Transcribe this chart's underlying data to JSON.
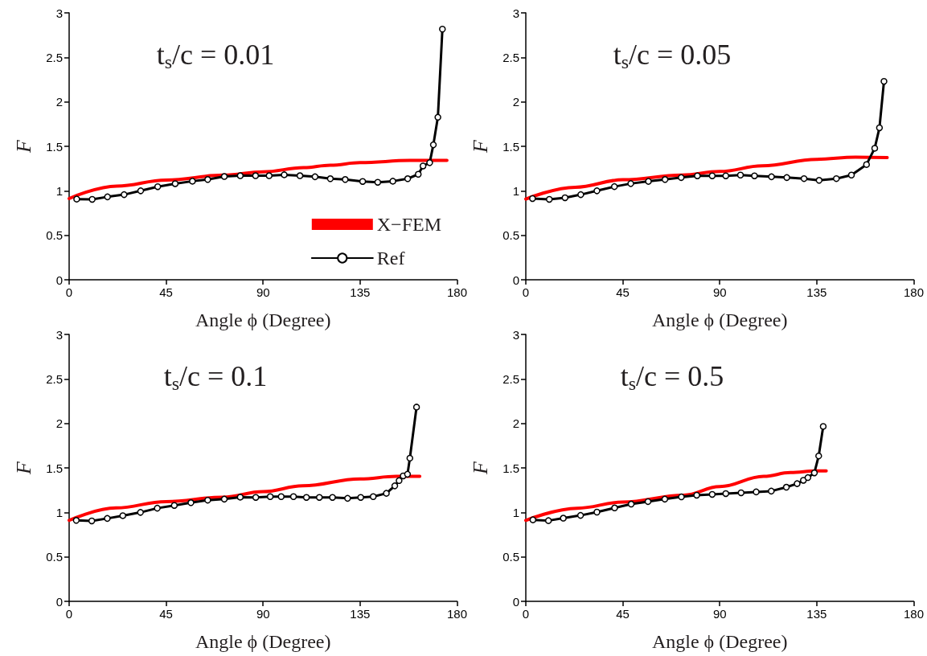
{
  "chart_data": [
    {
      "type": "line",
      "title": "t$_{s}$/c = 0.01",
      "xlabel": "Angle ϕ (Degree)",
      "ylabel": "F",
      "xlim": [
        0,
        180
      ],
      "ylim": [
        0,
        3
      ],
      "xticks": [
        0,
        45,
        90,
        135,
        180
      ],
      "yticks": [
        0,
        0.5,
        1,
        1.5,
        2,
        2.5,
        3
      ],
      "legend": "bottom right",
      "series": [
        {
          "name": "X−FEM",
          "color": "#ff0000",
          "marker": "none",
          "x": [
            0,
            22.1,
            45,
            71.6,
            90,
            108.8,
            121.2,
            135,
            158.4,
            175.3
          ],
          "values": [
            0.913,
            1.053,
            1.121,
            1.176,
            1.214,
            1.26,
            1.288,
            1.316,
            1.341,
            1.341
          ]
        },
        {
          "name": "Ref",
          "color": "#000000",
          "marker": "circle",
          "x": [
            3.5,
            10.7,
            17.8,
            25.5,
            33.2,
            41.1,
            49.2,
            57.2,
            64.3,
            72.0,
            79.4,
            86.5,
            92.8,
            99.8,
            107.1,
            114.1,
            121.2,
            128.1,
            136.2,
            143.2,
            150.2,
            157.1,
            162.0,
            164.2,
            167.3,
            169.0,
            171.1,
            173.2
          ],
          "values": [
            0.907,
            0.904,
            0.932,
            0.957,
            1.0,
            1.046,
            1.08,
            1.108,
            1.127,
            1.161,
            1.17,
            1.17,
            1.17,
            1.18,
            1.17,
            1.158,
            1.136,
            1.127,
            1.105,
            1.096,
            1.108,
            1.136,
            1.186,
            1.279,
            1.316,
            1.517,
            1.827,
            2.817
          ]
        }
      ]
    },
    {
      "type": "line",
      "title": "t$_{s}$/c = 0.05",
      "xlabel": "Angle ϕ (Degree)",
      "ylabel": "F",
      "xlim": [
        0,
        180
      ],
      "ylim": [
        0,
        3
      ],
      "xticks": [
        0,
        45,
        90,
        135,
        180
      ],
      "yticks": [
        0,
        0.5,
        1,
        1.5,
        2,
        2.5,
        3
      ],
      "series": [
        {
          "color": "#ff0000",
          "marker": "none",
          "x": [
            0,
            22.9,
            45,
            72.5,
            90,
            109.7,
            135,
            153,
            167.7
          ],
          "values": [
            0.907,
            1.04,
            1.124,
            1.177,
            1.217,
            1.28,
            1.354,
            1.379,
            1.373
          ]
        },
        {
          "color": "#000000",
          "marker": "circle",
          "x": [
            3.1,
            10.9,
            18.2,
            25.5,
            33.0,
            41.1,
            48.7,
            56.9,
            64.6,
            72.1,
            79.6,
            86.5,
            92.8,
            99.6,
            106.1,
            114.0,
            121.1,
            129.1,
            136.1,
            144.1,
            151.1,
            158.1,
            161.9,
            164.1,
            166.2
          ],
          "values": [
            0.913,
            0.904,
            0.922,
            0.957,
            1.0,
            1.047,
            1.081,
            1.106,
            1.127,
            1.149,
            1.168,
            1.168,
            1.168,
            1.177,
            1.168,
            1.158,
            1.149,
            1.137,
            1.118,
            1.137,
            1.177,
            1.295,
            1.478,
            1.708,
            2.23
          ]
        }
      ]
    },
    {
      "type": "line",
      "title": "t$_{s}$/c = 0.1",
      "xlabel": "Angle ϕ (Degree)",
      "ylabel": "F",
      "xlim": [
        0,
        180
      ],
      "ylim": [
        0,
        3
      ],
      "xticks": [
        0,
        45,
        90,
        135,
        180
      ],
      "yticks": [
        0,
        0.5,
        1,
        1.5,
        2,
        2.5,
        3
      ],
      "series": [
        {
          "color": "#ff0000",
          "marker": "none",
          "x": [
            0,
            21.7,
            45,
            71.3,
            90,
            108.4,
            135,
            151.8,
            162.7
          ],
          "values": [
            0.91,
            1.05,
            1.121,
            1.171,
            1.233,
            1.298,
            1.376,
            1.404,
            1.404
          ]
        },
        {
          "color": "#000000",
          "marker": "circle",
          "x": [
            3.3,
            10.5,
            17.7,
            24.9,
            33.1,
            40.9,
            48.8,
            56.5,
            64.3,
            72.0,
            79.4,
            86.6,
            93.3,
            98.4,
            104.1,
            110.1,
            116.1,
            122.2,
            129.2,
            135.3,
            141.1,
            147.2,
            151.1,
            153.1,
            155.0,
            157.0,
            158.1,
            161.2
          ],
          "values": [
            0.91,
            0.904,
            0.932,
            0.963,
            1.0,
            1.047,
            1.078,
            1.109,
            1.137,
            1.149,
            1.171,
            1.168,
            1.177,
            1.177,
            1.177,
            1.168,
            1.168,
            1.168,
            1.158,
            1.168,
            1.177,
            1.214,
            1.298,
            1.357,
            1.41,
            1.429,
            1.609,
            2.183
          ]
        }
      ]
    },
    {
      "type": "line",
      "title": "t$_{s}$/c = 0.5",
      "xlabel": "Angle ϕ (Degree)",
      "ylabel": "F",
      "xlim": [
        0,
        180
      ],
      "ylim": [
        0,
        3
      ],
      "xticks": [
        0,
        45,
        90,
        135,
        180
      ],
      "yticks": [
        0,
        0.5,
        1,
        1.5,
        2,
        2.5,
        3
      ],
      "series": [
        {
          "color": "#ff0000",
          "marker": "none",
          "x": [
            0,
            23.8,
            45,
            73.3,
            90,
            110.4,
            122.8,
            135,
            139.4
          ],
          "values": [
            0.91,
            1.047,
            1.115,
            1.193,
            1.289,
            1.404,
            1.447,
            1.466,
            1.466
          ]
        },
        {
          "color": "#000000",
          "marker": "circle",
          "x": [
            3.3,
            10.5,
            17.4,
            25.4,
            33.0,
            41.2,
            48.9,
            56.7,
            64.5,
            72.2,
            79.3,
            86.5,
            92.8,
            99.9,
            106.9,
            113.9,
            120.9,
            125.9,
            128.8,
            130.9,
            133.9,
            135.9,
            138.0
          ],
          "values": [
            0.916,
            0.907,
            0.935,
            0.966,
            1.003,
            1.05,
            1.093,
            1.121,
            1.149,
            1.174,
            1.193,
            1.202,
            1.211,
            1.22,
            1.23,
            1.239,
            1.283,
            1.323,
            1.36,
            1.391,
            1.444,
            1.634,
            1.966
          ]
        }
      ]
    }
  ]
}
